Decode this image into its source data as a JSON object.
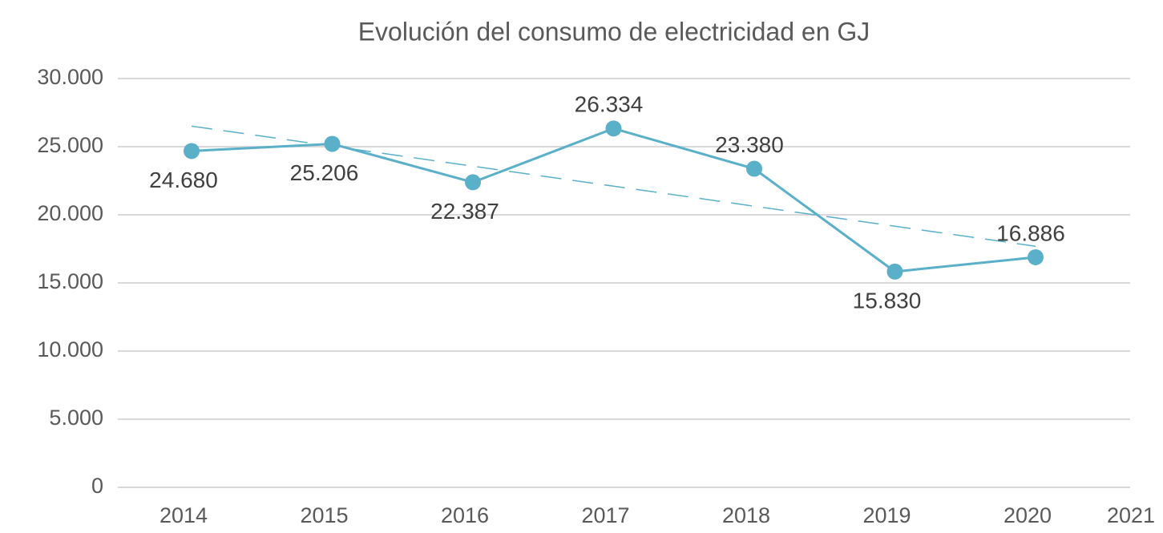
{
  "chart_data": {
    "type": "line",
    "title": "Evolución del consumo de electricidad en GJ",
    "categories": [
      "2014",
      "2015",
      "2016",
      "2017",
      "2018",
      "2019",
      "2020",
      "2021"
    ],
    "series": [
      {
        "color": "#5aafc9",
        "values": [
          24680,
          25206,
          22387,
          26334,
          23380,
          15830,
          16886,
          null
        ],
        "value_labels": [
          "24.680",
          "25.206",
          "22.387",
          "26.334",
          "23.380",
          "15.830",
          "16.886",
          null
        ]
      }
    ],
    "trendline": "linear",
    "ylim": [
      0,
      30000
    ],
    "yticks": [
      0,
      {
        "value": 5000,
        "label": "5.000"
      },
      {
        "value": 10000,
        "label": "10.000"
      },
      {
        "value": 15000,
        "label": "15.000"
      },
      {
        "value": 20000,
        "label": "20.000"
      },
      {
        "value": 25000,
        "label": "25.000"
      },
      {
        "value": 30000,
        "label": "30.000"
      }
    ],
    "grid": true
  }
}
